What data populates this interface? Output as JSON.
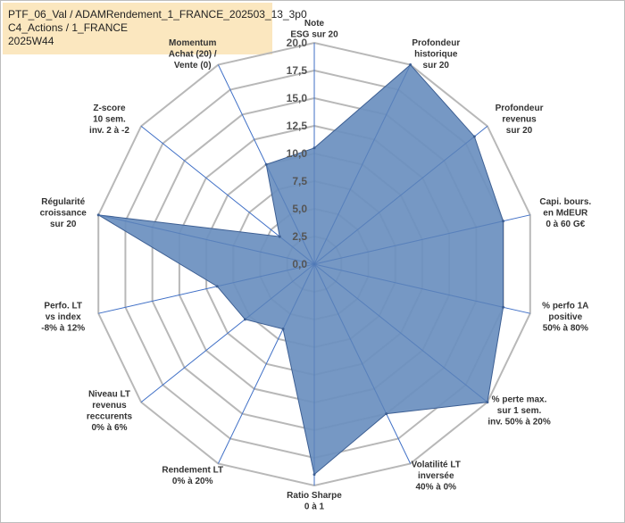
{
  "title": {
    "line1": "PTF_06_Val / ADAMRendement_1_FRANCE_202503_13_3p0",
    "line2": "C4_Actions / 1_FRANCE",
    "line3": "2025W44"
  },
  "chart_data": {
    "type": "radar",
    "rmin": 0,
    "rmax": 20,
    "ticks": [
      "0,0",
      "2,5",
      "5,0",
      "7,5",
      "10,0",
      "12,5",
      "15,0",
      "17,5",
      "20,0"
    ],
    "tick_values": [
      0,
      2.5,
      5,
      7.5,
      10,
      12.5,
      15,
      17.5,
      20
    ],
    "axes": [
      {
        "label": [
          "Note",
          "ESG sur 20"
        ],
        "value": 10.5
      },
      {
        "label": [
          "Profondeur",
          "historique",
          "sur 20"
        ],
        "value": 20
      },
      {
        "label": [
          "Profondeur",
          "revenus",
          "sur 20"
        ],
        "value": 18.5
      },
      {
        "label": [
          "Capi. bours.",
          "en MdEUR",
          "0 à 60 G€"
        ],
        "value": 17.5
      },
      {
        "label": [
          "% perfo 1A",
          "positive",
          "50% à 80%"
        ],
        "value": 17.5
      },
      {
        "label": [
          "% perte max.",
          "sur 1 sem.",
          "inv. 50% à 20%"
        ],
        "value": 20
      },
      {
        "label": [
          "Volatilité LT",
          "inversée",
          "40% à 0%"
        ],
        "value": 15
      },
      {
        "label": [
          "Ratio Sharpe",
          "0 à 1"
        ],
        "value": 19
      },
      {
        "label": [
          "Rendement LT",
          "0% à 20%"
        ],
        "value": 6.5
      },
      {
        "label": [
          "Niveau LT",
          "revenus",
          "reccurents",
          "0% à 6%"
        ],
        "value": 8
      },
      {
        "label": [
          "Perfo. LT",
          "vs index",
          "-8% à 12%"
        ],
        "value": 9
      },
      {
        "label": [
          "Régularité",
          "croissance",
          "sur 20"
        ],
        "value": 20
      },
      {
        "label": [
          "Z-score",
          "10 sem.",
          "inv. 2 à -2"
        ],
        "value": 4
      },
      {
        "label": [
          "Momentum",
          "Achat (20) /",
          "Vente (0)"
        ],
        "value": 10
      }
    ],
    "colors": {
      "fill": "#6a8fbf",
      "stroke": "#3d5f93",
      "grid": "#b8b8b8",
      "spoke": "#3f6fc6"
    }
  }
}
